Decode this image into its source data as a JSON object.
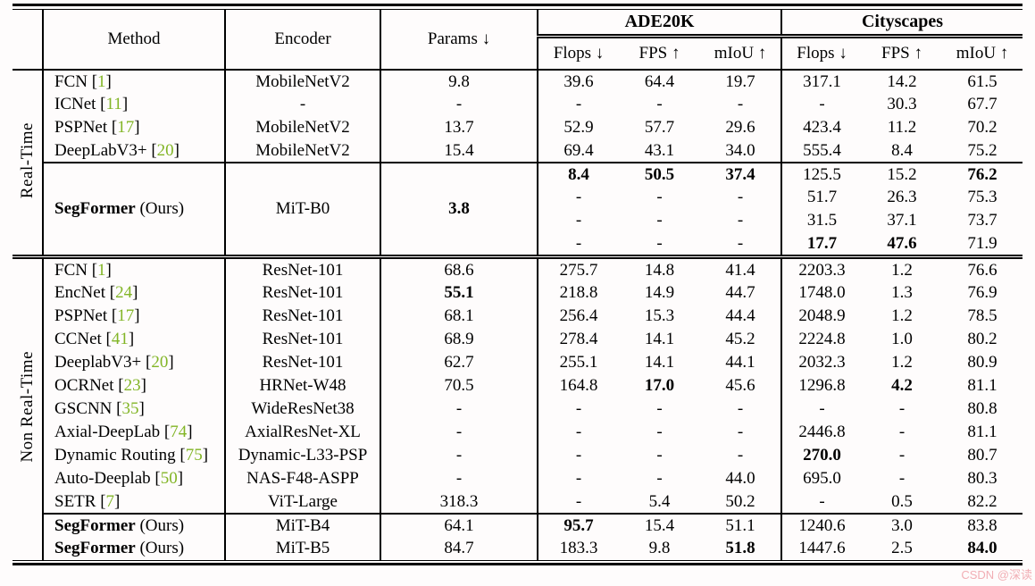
{
  "colors": {
    "citation": "#82b526",
    "watermark": "#f0a6ad",
    "background": "#fefcfc",
    "rule": "#000000"
  },
  "watermark": {
    "text": "CSDN @深读"
  },
  "header": {
    "method": "Method",
    "encoder": "Encoder",
    "params": "Params ↓",
    "groups": [
      {
        "label": "ADE20K",
        "cols": [
          "Flops ↓",
          "FPS ↑",
          "mIoU ↑"
        ]
      },
      {
        "label": "Cityscapes",
        "cols": [
          "Flops ↓",
          "FPS ↑",
          "mIoU ↑"
        ]
      }
    ]
  },
  "sections": [
    {
      "label": "Real-Time",
      "blocks": [
        {
          "type": "rows",
          "rows": [
            {
              "method": "FCN",
              "cite": "1",
              "encoder": "MobileNetV2",
              "params": "9.8",
              "values": [
                "39.6",
                "64.4",
                "19.7",
                "317.1",
                "14.2",
                "61.5"
              ]
            },
            {
              "method": "ICNet",
              "cite": "11",
              "encoder": "-",
              "params": "-",
              "values": [
                "-",
                "-",
                "-",
                "-",
                "30.3",
                "67.7"
              ]
            },
            {
              "method": "PSPNet",
              "cite": "17",
              "encoder": "MobileNetV2",
              "params": "13.7",
              "values": [
                "52.9",
                "57.7",
                "29.6",
                "423.4",
                "11.2",
                "70.2"
              ]
            },
            {
              "method": "DeepLabV3+",
              "cite": "20",
              "encoder": "MobileNetV2",
              "params": "15.4",
              "values": [
                "69.4",
                "43.1",
                "34.0",
                "555.4",
                "8.4",
                "75.2"
              ]
            }
          ]
        },
        {
          "type": "merged",
          "method": "SegFormer",
          "suffix": " (Ours)",
          "bold": true,
          "encoder": "MiT-B0",
          "params": {
            "t": "3.8",
            "b": true
          },
          "rows": [
            {
              "values": [
                {
                  "t": "8.4",
                  "b": true
                },
                {
                  "t": "50.5",
                  "b": true
                },
                {
                  "t": "37.4",
                  "b": true
                },
                "125.5",
                "15.2",
                {
                  "t": "76.2",
                  "b": true
                }
              ]
            },
            {
              "values": [
                "-",
                "-",
                "-",
                "51.7",
                "26.3",
                "75.3"
              ]
            },
            {
              "values": [
                "-",
                "-",
                "-",
                "31.5",
                "37.1",
                "73.7"
              ]
            },
            {
              "values": [
                "-",
                "-",
                "-",
                {
                  "t": "17.7",
                  "b": true
                },
                {
                  "t": "47.6",
                  "b": true
                },
                "71.9"
              ]
            }
          ]
        }
      ]
    },
    {
      "label": "Non Real-Time",
      "blocks": [
        {
          "type": "rows",
          "rows": [
            {
              "method": "FCN",
              "cite": "1",
              "encoder": "ResNet-101",
              "params": "68.6",
              "values": [
                "275.7",
                "14.8",
                "41.4",
                "2203.3",
                "1.2",
                "76.6"
              ]
            },
            {
              "method": "EncNet",
              "cite": "24",
              "encoder": "ResNet-101",
              "params": {
                "t": "55.1",
                "b": true
              },
              "values": [
                "218.8",
                "14.9",
                "44.7",
                "1748.0",
                "1.3",
                "76.9"
              ]
            },
            {
              "method": "PSPNet",
              "cite": "17",
              "encoder": "ResNet-101",
              "params": "68.1",
              "values": [
                "256.4",
                "15.3",
                "44.4",
                "2048.9",
                "1.2",
                "78.5"
              ]
            },
            {
              "method": "CCNet",
              "cite": "41",
              "encoder": "ResNet-101",
              "params": "68.9",
              "values": [
                "278.4",
                "14.1",
                "45.2",
                "2224.8",
                "1.0",
                "80.2"
              ]
            },
            {
              "method": "DeeplabV3+",
              "cite": "20",
              "encoder": "ResNet-101",
              "params": "62.7",
              "values": [
                "255.1",
                "14.1",
                "44.1",
                "2032.3",
                "1.2",
                "80.9"
              ]
            },
            {
              "method": "OCRNet",
              "cite": "23",
              "encoder": "HRNet-W48",
              "params": "70.5",
              "values": [
                "164.8",
                {
                  "t": "17.0",
                  "b": true
                },
                "45.6",
                "1296.8",
                {
                  "t": "4.2",
                  "b": true
                },
                "81.1"
              ]
            },
            {
              "method": "GSCNN",
              "cite": "35",
              "encoder": "WideResNet38",
              "params": "-",
              "values": [
                "-",
                "-",
                "-",
                "-",
                "-",
                "80.8"
              ]
            },
            {
              "method": "Axial-DeepLab",
              "cite": "74",
              "encoder": "AxialResNet-XL",
              "params": "-",
              "values": [
                "-",
                "-",
                "-",
                "2446.8",
                "-",
                "81.1"
              ]
            },
            {
              "method": "Dynamic Routing",
              "cite": "75",
              "encoder": "Dynamic-L33-PSP",
              "params": "-",
              "values": [
                "-",
                "-",
                "-",
                {
                  "t": "270.0",
                  "b": true
                },
                "-",
                "80.7"
              ]
            },
            {
              "method": "Auto-Deeplab",
              "cite": "50",
              "encoder": "NAS-F48-ASPP",
              "params": "-",
              "values": [
                "-",
                "-",
                "44.0",
                "695.0",
                "-",
                "80.3"
              ]
            },
            {
              "method": "SETR",
              "cite": "7",
              "encoder": "ViT-Large",
              "params": "318.3",
              "values": [
                "-",
                "5.4",
                "50.2",
                "-",
                "0.5",
                "82.2"
              ]
            }
          ]
        },
        {
          "type": "rows",
          "rows": [
            {
              "method": "SegFormer",
              "suffix": " (Ours)",
              "bold": true,
              "encoder": "MiT-B4",
              "params": "64.1",
              "values": [
                {
                  "t": "95.7",
                  "b": true
                },
                "15.4",
                "51.1",
                "1240.6",
                "3.0",
                "83.8"
              ]
            },
            {
              "method": "SegFormer",
              "suffix": " (Ours)",
              "bold": true,
              "encoder": "MiT-B5",
              "params": "84.7",
              "values": [
                "183.3",
                "9.8",
                {
                  "t": "51.8",
                  "b": true
                },
                "1447.6",
                "2.5",
                {
                  "t": "84.0",
                  "b": true
                }
              ]
            }
          ]
        }
      ]
    }
  ]
}
